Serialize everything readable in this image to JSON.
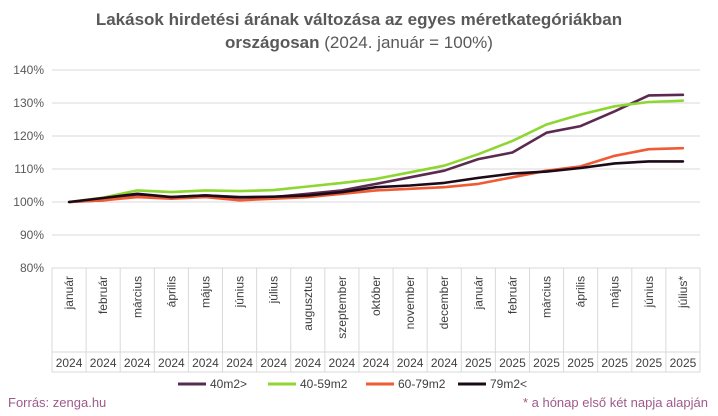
{
  "chart_data": {
    "type": "line",
    "title_bold_1": "Lakások hirdetési árának változása az egyes méretkategóriákban",
    "title_bold_2": "országosan",
    "title_rest_2": " (2024. január = 100%)",
    "categories": [
      "január",
      "február",
      "március",
      "április",
      "május",
      "június",
      "július",
      "augusztus",
      "szeptember",
      "október",
      "november",
      "december",
      "január",
      "február",
      "március",
      "április",
      "május",
      "június",
      "július*"
    ],
    "years": [
      "2024",
      "2024",
      "2024",
      "2024",
      "2024",
      "2024",
      "2024",
      "2024",
      "2024",
      "2024",
      "2024",
      "2024",
      "2025",
      "2025",
      "2025",
      "2025",
      "2025",
      "2025",
      "2025"
    ],
    "yticks": [
      "80%",
      "90%",
      "100%",
      "110%",
      "120%",
      "130%",
      "140%"
    ],
    "ylim": [
      80,
      140
    ],
    "series": [
      {
        "name": "40m2>",
        "color": "#5c2a50",
        "values": [
          100,
          100.5,
          102,
          101.5,
          102,
          101.5,
          101.5,
          102.5,
          103.5,
          105.5,
          107.5,
          109.5,
          113,
          115,
          121,
          123,
          127.5,
          132.3,
          132.5
        ]
      },
      {
        "name": "40-59m2",
        "color": "#8ed631",
        "values": [
          100,
          101.3,
          103.5,
          103,
          103.5,
          103.3,
          103.6,
          104.7,
          105.8,
          107,
          109,
          111,
          114.5,
          118.5,
          123.5,
          126.5,
          129,
          130.3,
          130.7
        ]
      },
      {
        "name": "60-79m2",
        "color": "#ef5b34",
        "values": [
          100,
          100.5,
          101.5,
          101,
          101.5,
          100.5,
          101,
          101.5,
          102.5,
          103.5,
          104,
          104.5,
          105.5,
          107.5,
          109.5,
          110.8,
          114,
          116,
          116.3
        ]
      },
      {
        "name": "79m2<",
        "color": "#1c0a19",
        "values": [
          100,
          101.2,
          102.5,
          101.5,
          102,
          101.4,
          101.6,
          102,
          103,
          104.5,
          105,
          105.8,
          107.3,
          108.6,
          109.2,
          110.3,
          111.7,
          112.3,
          112.3
        ]
      }
    ]
  },
  "footer": {
    "source": "Forrás: zenga.hu",
    "note": "* a hónap első két napja alapján"
  }
}
